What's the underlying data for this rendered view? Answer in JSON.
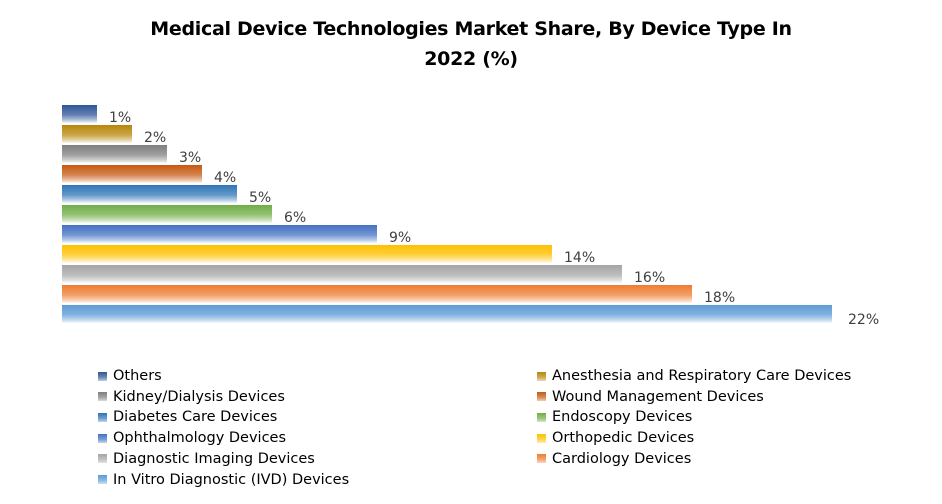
{
  "chart_data": {
    "type": "bar",
    "orientation": "horizontal",
    "title": "Medical Device Technologies Market Share, By Device Type In 2022 (%)",
    "title_lines": [
      "Medical Device Technologies Market Share, By Device Type In",
      "2022 (%)"
    ],
    "xlabel": "",
    "ylabel": "",
    "grid": false,
    "legend_position": "bottom",
    "xlim": [
      0,
      22
    ],
    "value_suffix": "%",
    "categories": [
      "Others",
      "Anesthesia and Respiratory Care Devices",
      "Kidney/Dialysis Devices",
      "Wound Management Devices",
      "Diabetes Care Devices",
      "Endoscopy Devices",
      "Ophthalmology Devices",
      "Orthopedic Devices",
      "Diagnostic Imaging Devices",
      "Cardiology Devices",
      "In Vitro Diagnostic (IVD) Devices"
    ],
    "values": [
      1,
      2,
      3,
      4,
      5,
      6,
      9,
      14,
      16,
      18,
      22
    ],
    "data_labels": [
      "1%",
      "2%",
      "3%",
      "4%",
      "5%",
      "6%",
      "9%",
      "14%",
      "16%",
      "18%",
      "22%"
    ],
    "colors": [
      "#2f5597",
      "#b8860b",
      "#7f7f7f",
      "#c55a11",
      "#2e75b6",
      "#70ad47",
      "#4472c4",
      "#ffc000",
      "#a5a5a5",
      "#ed7d31",
      "#5b9bd5"
    ]
  }
}
